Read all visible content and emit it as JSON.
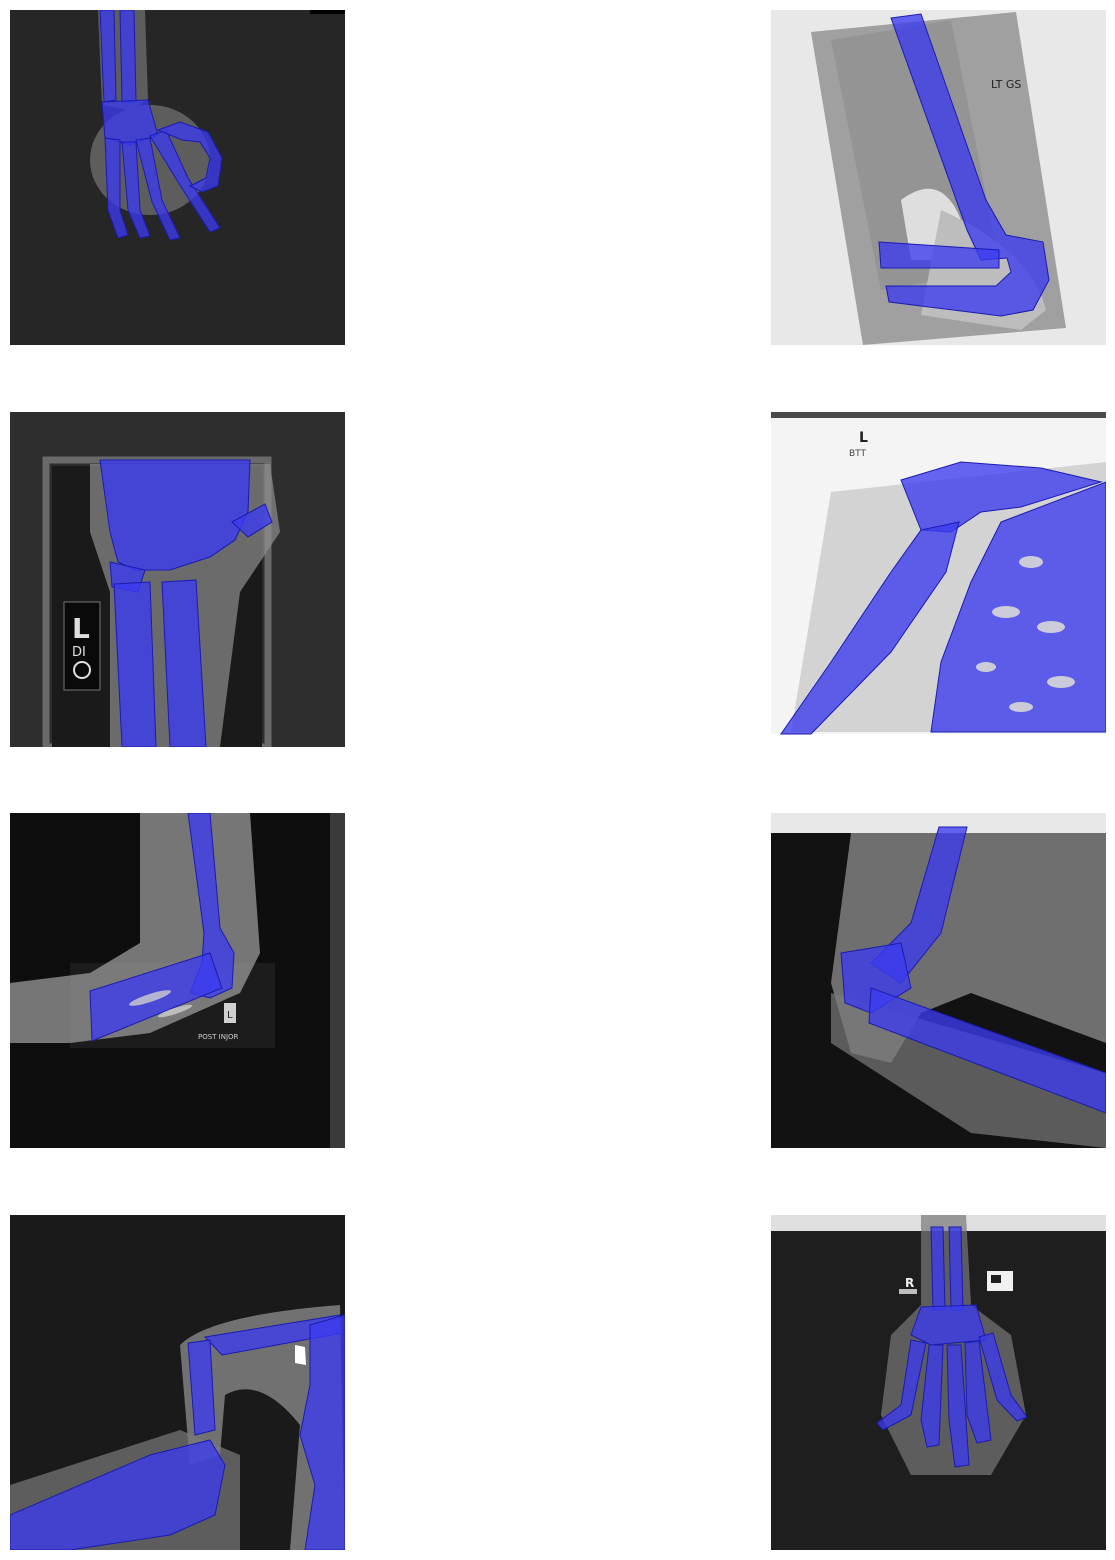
{
  "overlay_color": "#3b3bf0",
  "panels": [
    {
      "name": "hand-panel-1",
      "markers": []
    },
    {
      "name": "elbow-panel-2",
      "markers": [
        "LT GS"
      ]
    },
    {
      "name": "wrist-panel-3",
      "markers": [
        "L",
        "DI"
      ]
    },
    {
      "name": "shoulder-panel-4",
      "markers": [
        "L",
        "BTT"
      ]
    },
    {
      "name": "elbow-panel-5",
      "markers": [
        "L",
        "POST INJOR"
      ]
    },
    {
      "name": "elbow-panel-6",
      "markers": []
    },
    {
      "name": "arm-panel-7",
      "markers": []
    },
    {
      "name": "hand-panel-8",
      "markers": [
        "R"
      ]
    }
  ]
}
